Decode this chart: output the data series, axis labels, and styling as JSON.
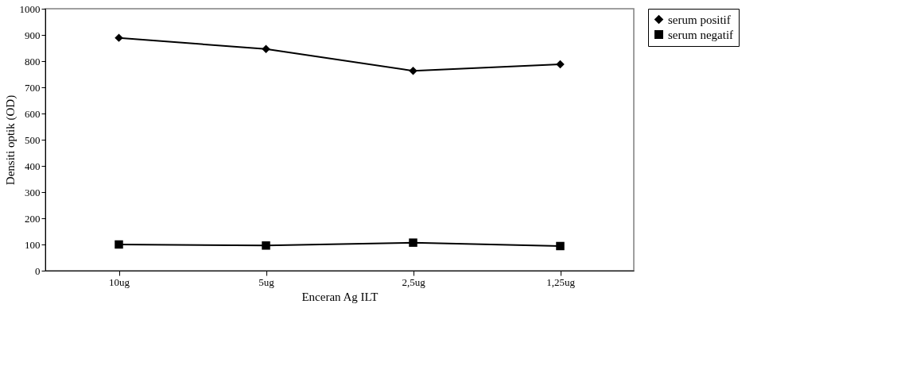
{
  "chart_data": {
    "type": "line",
    "xlabel": "Enceran Ag ILT",
    "ylabel": "Densiti optik (OD)",
    "categories": [
      "10ug",
      "5ug",
      "2,5ug",
      "1,25ug"
    ],
    "series": [
      {
        "name": "serum positif",
        "color": "#000000",
        "marker": "diamond",
        "values": [
          889,
          846,
          763,
          788
        ]
      },
      {
        "name": "serum negatif",
        "color": "#000000",
        "marker": "square",
        "values": [
          100,
          96,
          107,
          94
        ]
      }
    ],
    "ylim": [
      0,
      1000
    ],
    "yticks": [
      0,
      100,
      200,
      300,
      400,
      500,
      600,
      700,
      800,
      900,
      1000
    ],
    "grid": false,
    "legend": "right",
    "line_style": "solid"
  }
}
